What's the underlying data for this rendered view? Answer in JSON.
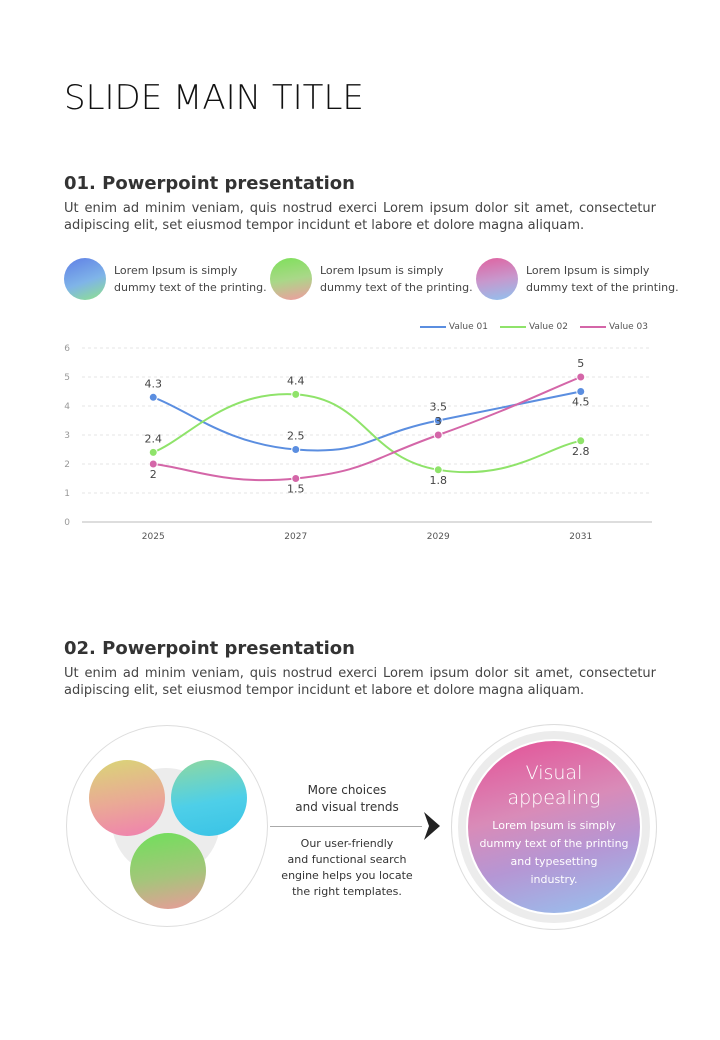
{
  "title": "SLIDE MAIN TITLE",
  "section1": {
    "heading": "01. Powerpoint presentation",
    "body": "Ut enim ad minim veniam, quis nostrud exerci  Lorem ipsum dolor sit amet, consectetur adipiscing elit, set eiusmod tempor incidunt et labore et dolore magna aliquam."
  },
  "features": [
    {
      "line1": "Lorem Ipsum is simply",
      "line2": "dummy text of the printing.",
      "icon": "network-icon"
    },
    {
      "line1": "Lorem Ipsum is simply",
      "line2": "dummy text of the printing.",
      "icon": "spiral-icon"
    },
    {
      "line1": "Lorem Ipsum is simply",
      "line2": "dummy text of the printing.",
      "icon": "dot-grid-icon"
    }
  ],
  "chart_data": {
    "type": "line",
    "categories": [
      "2025",
      "2027",
      "2029",
      "2031"
    ],
    "ylim": [
      0,
      6
    ],
    "yticks": [
      "0",
      "1",
      "2",
      "3",
      "4",
      "5",
      "6"
    ],
    "grid": true,
    "legend": "top-right",
    "series": [
      {
        "name": "Value 01",
        "color": "#5b8ee0",
        "values": [
          4.3,
          2.5,
          3.5,
          4.5
        ],
        "labels": [
          "4.3",
          "2.5",
          "3.5",
          "4.5"
        ]
      },
      {
        "name": "Value 02",
        "color": "#8fe36a",
        "values": [
          2.4,
          4.4,
          1.8,
          2.8
        ],
        "labels": [
          "2.4",
          "4.4",
          "1.8",
          "2.8"
        ]
      },
      {
        "name": "Value 03",
        "color": "#d466a8",
        "values": [
          2,
          1.5,
          3,
          5
        ],
        "labels": [
          "2",
          "1.5",
          "3",
          "5"
        ]
      }
    ]
  },
  "section2": {
    "heading": "02. Powerpoint presentation",
    "body": "Ut enim ad minim veniam, quis nostrud exerci  Lorem ipsum dolor sit amet, consectetur adipiscing elit, set eiusmod tempor incidunt et labore et dolore magna aliquam."
  },
  "middle": {
    "top1": "More choices",
    "top2": "and visual trends",
    "b1": "Our user-friendly",
    "b2": "and functional search",
    "b3": "engine helps you locate",
    "b4": "the right templates."
  },
  "circle": {
    "title1": "Visual",
    "title2": "appealing",
    "l1": "Lorem Ipsum is simply",
    "l2": "dummy text of the printing",
    "l3": "and typesetting",
    "l4": "industry."
  }
}
